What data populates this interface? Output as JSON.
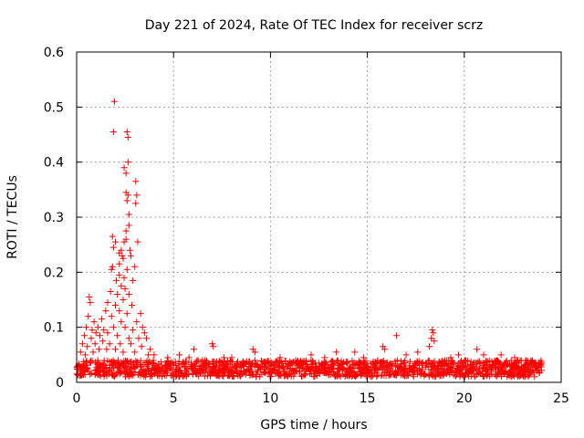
{
  "chart_data": {
    "type": "scatter",
    "title": "Day 221 of 2024, Rate Of TEC Index for receiver scrz",
    "xlabel": "GPS time / hours",
    "ylabel": "ROTI / TECUs",
    "xlim": [
      0,
      25
    ],
    "ylim": [
      0,
      0.6
    ],
    "xticks": [
      0,
      5,
      10,
      15,
      20,
      25
    ],
    "yticks": [
      0,
      0.1,
      0.2,
      0.3,
      0.4,
      0.5,
      0.6
    ],
    "xtick_labels": [
      "0",
      "5",
      "10",
      "15",
      "20",
      "25"
    ],
    "ytick_labels": [
      "0",
      "0.1",
      "0.2",
      "0.3",
      "0.4",
      "0.5",
      "0.6"
    ],
    "grid": true,
    "marker": "+",
    "color": "#ff0000",
    "series": [
      {
        "name": "ROTI",
        "points": [
          [
            1.95,
            0.51
          ],
          [
            1.9,
            0.455
          ],
          [
            2.6,
            0.455
          ],
          [
            2.65,
            0.445
          ],
          [
            2.65,
            0.4
          ],
          [
            2.45,
            0.39
          ],
          [
            2.55,
            0.38
          ],
          [
            3.05,
            0.365
          ],
          [
            2.55,
            0.345
          ],
          [
            2.65,
            0.34
          ],
          [
            2.6,
            0.33
          ],
          [
            3.1,
            0.34
          ],
          [
            3.05,
            0.325
          ],
          [
            2.7,
            0.305
          ],
          [
            2.7,
            0.285
          ],
          [
            2.55,
            0.275
          ],
          [
            1.85,
            0.265
          ],
          [
            2.55,
            0.26
          ],
          [
            2.0,
            0.255
          ],
          [
            2.45,
            0.255
          ],
          [
            1.9,
            0.245
          ],
          [
            2.3,
            0.24
          ],
          [
            2.75,
            0.24
          ],
          [
            3.15,
            0.255
          ],
          [
            2.2,
            0.235
          ],
          [
            2.35,
            0.23
          ],
          [
            2.8,
            0.23
          ],
          [
            2.4,
            0.225
          ],
          [
            2.2,
            0.215
          ],
          [
            1.85,
            0.21
          ],
          [
            1.8,
            0.205
          ],
          [
            2.6,
            0.205
          ],
          [
            3.0,
            0.21
          ],
          [
            2.2,
            0.195
          ],
          [
            2.45,
            0.19
          ],
          [
            2.05,
            0.185
          ],
          [
            2.9,
            0.185
          ],
          [
            2.3,
            0.175
          ],
          [
            2.5,
            0.17
          ],
          [
            1.75,
            0.165
          ],
          [
            2.1,
            0.16
          ],
          [
            2.7,
            0.16
          ],
          [
            0.65,
            0.155
          ],
          [
            0.7,
            0.145
          ],
          [
            2.4,
            0.15
          ],
          [
            1.6,
            0.145
          ],
          [
            2.0,
            0.14
          ],
          [
            2.85,
            0.14
          ],
          [
            3.3,
            0.125
          ],
          [
            0.6,
            0.12
          ],
          [
            1.5,
            0.13
          ],
          [
            2.2,
            0.13
          ],
          [
            2.6,
            0.125
          ],
          [
            0.9,
            0.11
          ],
          [
            1.1,
            0.1
          ],
          [
            1.3,
            0.115
          ],
          [
            1.8,
            0.12
          ],
          [
            2.3,
            0.11
          ],
          [
            3.1,
            0.11
          ],
          [
            3.4,
            0.1
          ],
          [
            0.5,
            0.1
          ],
          [
            0.8,
            0.095
          ],
          [
            1.0,
            0.09
          ],
          [
            1.4,
            0.095
          ],
          [
            1.9,
            0.1
          ],
          [
            2.5,
            0.1
          ],
          [
            2.9,
            0.095
          ],
          [
            3.5,
            0.09
          ],
          [
            0.4,
            0.085
          ],
          [
            0.75,
            0.08
          ],
          [
            1.2,
            0.085
          ],
          [
            1.6,
            0.09
          ],
          [
            2.1,
            0.085
          ],
          [
            2.7,
            0.08
          ],
          [
            3.2,
            0.08
          ],
          [
            3.6,
            0.08
          ],
          [
            0.3,
            0.07
          ],
          [
            0.55,
            0.065
          ],
          [
            0.95,
            0.07
          ],
          [
            1.35,
            0.075
          ],
          [
            1.7,
            0.07
          ],
          [
            2.25,
            0.07
          ],
          [
            2.8,
            0.07
          ],
          [
            3.35,
            0.065
          ],
          [
            3.8,
            0.06
          ],
          [
            0.2,
            0.055
          ],
          [
            0.45,
            0.05
          ],
          [
            0.85,
            0.055
          ],
          [
            1.15,
            0.06
          ],
          [
            1.55,
            0.06
          ],
          [
            2.0,
            0.06
          ],
          [
            2.4,
            0.055
          ],
          [
            3.0,
            0.055
          ],
          [
            3.7,
            0.05
          ],
          [
            4.0,
            0.05
          ],
          [
            6.05,
            0.06
          ],
          [
            7.0,
            0.07
          ],
          [
            7.05,
            0.065
          ],
          [
            9.1,
            0.06
          ],
          [
            9.2,
            0.055
          ],
          [
            12.1,
            0.05
          ],
          [
            13.4,
            0.055
          ],
          [
            14.35,
            0.055
          ],
          [
            15.8,
            0.065
          ],
          [
            15.9,
            0.06
          ],
          [
            16.5,
            0.085
          ],
          [
            18.35,
            0.095
          ],
          [
            18.4,
            0.09
          ],
          [
            18.3,
            0.08
          ],
          [
            18.45,
            0.075
          ],
          [
            18.2,
            0.065
          ],
          [
            17.6,
            0.055
          ],
          [
            19.7,
            0.05
          ],
          [
            20.65,
            0.06
          ],
          [
            21.0,
            0.05
          ],
          [
            21.9,
            0.05
          ],
          [
            22.6,
            0.045
          ],
          [
            23.5,
            0.04
          ],
          [
            8.0,
            0.045
          ],
          [
            10.5,
            0.045
          ],
          [
            11.3,
            0.04
          ],
          [
            14.8,
            0.045
          ],
          [
            17.0,
            0.05
          ],
          [
            19.3,
            0.045
          ],
          [
            4.7,
            0.045
          ],
          [
            5.3,
            0.05
          ],
          [
            5.8,
            0.045
          ],
          [
            6.5,
            0.04
          ],
          [
            7.6,
            0.045
          ],
          [
            12.8,
            0.045
          ]
        ]
      }
    ],
    "baseline_band": {
      "x_range": [
        0,
        24
      ],
      "y_range": [
        0.01,
        0.04
      ]
    }
  }
}
